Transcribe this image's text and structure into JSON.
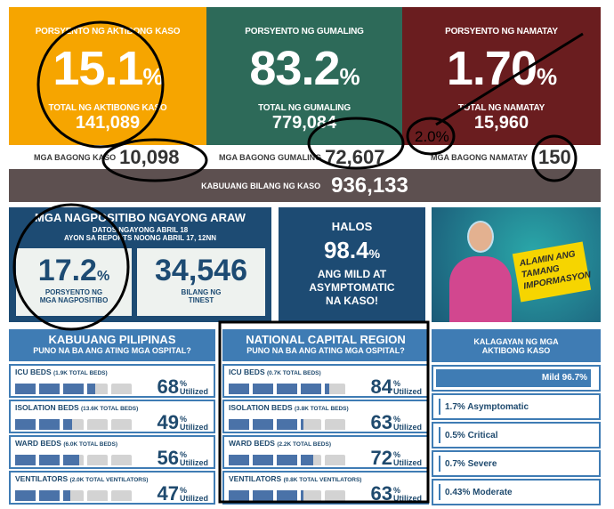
{
  "top": [
    {
      "label": "PORSYENTO NG AKTIBONG KASO",
      "pct": "15.1",
      "pct_sign": "%",
      "total_label": "TOTAL NG AKTIBONG KASO",
      "total": "141,089",
      "new_label": "MGA BAGONG KASO",
      "new": "10,098",
      "color": "#f6a500"
    },
    {
      "label": "PORSYENTO NG GUMALING",
      "pct": "83.2",
      "pct_sign": "%",
      "total_label": "TOTAL NG GUMALING",
      "total": "779,084",
      "new_label": "MGA BAGONG GUMALING",
      "new": "72,607",
      "color": "#2d6a59"
    },
    {
      "label": "PORSYENTO NG NAMATAY",
      "pct": "1.70",
      "pct_sign": "%",
      "total_label": "TOTAL NG NAMATAY",
      "total": "15,960",
      "new_label": "MGA BAGONG NAMATAY",
      "new": "150",
      "color": "#6a1d1f"
    }
  ],
  "total_cases": {
    "label": "KABUUANG BILANG NG KASO",
    "value": "936,133"
  },
  "annotation_text": "2.0%",
  "positives": {
    "title": "MGA NAGPOSITIBO NGAYONG ARAW",
    "sub1": "DATOS NGAYONG ABRIL 18",
    "sub2": "AYON SA REPORTS NOONG ABRIL 17, 12NN",
    "pct": "17.2",
    "pct_sign": "%",
    "pct_label": "PORSYENTO NG MGA NAGPOSITIBO",
    "tested": "34,546",
    "tested_label": "BILANG NG TINEST"
  },
  "halos": {
    "l1": "HALOS",
    "pct": "98.4",
    "pct_sign": "%",
    "l2": "ANG MILD AT ASYMPTOMATIC NA KASO!"
  },
  "promo": {
    "text": "ALAMIN ANG TAMANG IMPORMASYON"
  },
  "hospitals": [
    {
      "title": "KABUUANG PILIPINAS",
      "subtitle": "PUNO NA BA ANG ATING MGA OSPITAL?",
      "rows": [
        {
          "name": "ICU BEDS",
          "cap": "(1.9K TOTAL BEDS)",
          "value": 68
        },
        {
          "name": "ISOLATION BEDS",
          "cap": "(13.6K TOTAL BEDS)",
          "value": 49
        },
        {
          "name": "WARD BEDS",
          "cap": "(6.0K TOTAL BEDS)",
          "value": 56
        },
        {
          "name": "VENTILATORS",
          "cap": "(2.0K TOTAL VENTILATORS)",
          "value": 47
        }
      ]
    },
    {
      "title": "NATIONAL CAPITAL REGION",
      "subtitle": "PUNO NA BA ANG ATING MGA OSPITAL?",
      "rows": [
        {
          "name": "ICU BEDS",
          "cap": "(0.7K TOTAL BEDS)",
          "value": 84
        },
        {
          "name": "ISOLATION BEDS",
          "cap": "(3.8K TOTAL BEDS)",
          "value": 63
        },
        {
          "name": "WARD BEDS",
          "cap": "(2.2K TOTAL BEDS)",
          "value": 72
        },
        {
          "name": "VENTILATORS",
          "cap": "(0.8K TOTAL VENTILATORS)",
          "value": 63
        }
      ]
    }
  ],
  "pct_symbol": "%",
  "utilized": "Utilized",
  "status": {
    "title": "KALAGAYAN NG MGA AKTIBONG KASO",
    "mild": "Mild 96.7%",
    "items": [
      "1.7% Asymptomatic",
      "0.5% Critical",
      "0.7% Severe",
      "0.43% Moderate"
    ]
  }
}
